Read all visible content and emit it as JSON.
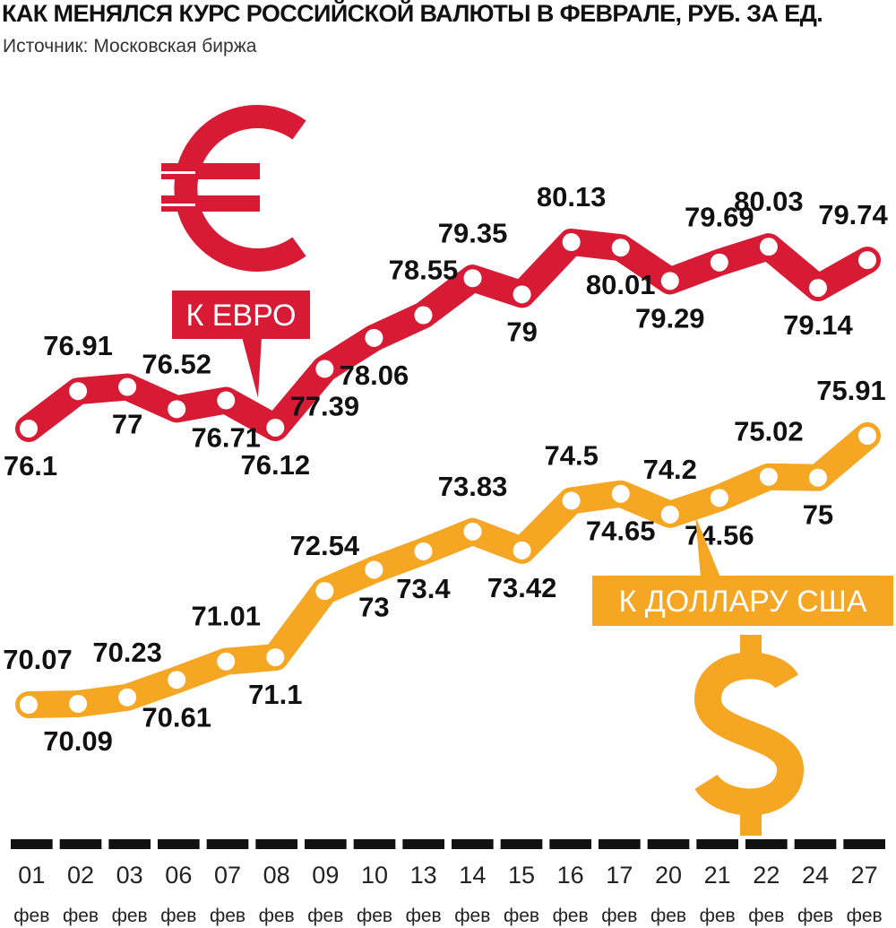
{
  "title": "КАК МЕНЯЛСЯ КУРС РОССИЙСКОЙ ВАЛЮТЫ В ФЕВРАЛЕ, РУБ. ЗА ЕД.",
  "subtitle": "Источник: Московская биржа",
  "colors": {
    "euro": "#d81b35",
    "usd": "#f5a623",
    "axis": "#111111",
    "marker": "#ffffff"
  },
  "icons": {
    "euro": "euro-sign-icon",
    "usd": "dollar-sign-icon"
  },
  "chart_data": {
    "type": "line",
    "categories": [
      "01",
      "02",
      "03",
      "06",
      "07",
      "08",
      "09",
      "10",
      "13",
      "14",
      "15",
      "16",
      "17",
      "20",
      "21",
      "22",
      "24",
      "27"
    ],
    "category_sublabel": "фев",
    "series": [
      {
        "name": "К ЕВРО",
        "key": "euro",
        "values": [
          76.1,
          76.91,
          77,
          76.52,
          76.71,
          76.12,
          77.39,
          78.06,
          78.55,
          79.35,
          79,
          80.13,
          80.01,
          79.29,
          79.69,
          80.03,
          79.14,
          79.74
        ],
        "labels": [
          "76.1",
          "76.91",
          "77",
          "76.52",
          "76.71",
          "76.12",
          "77.39",
          "78.06",
          "78.55",
          "79.35",
          "79",
          "80.13",
          "80.01",
          "79.29",
          "79.69",
          "80.03",
          "79.14",
          "79.74"
        ]
      },
      {
        "name": "К ДОЛЛАРУ США",
        "key": "usd",
        "values": [
          70.07,
          70.09,
          70.23,
          70.61,
          71.01,
          71.1,
          72.54,
          73,
          73.4,
          73.83,
          73.42,
          74.5,
          74.65,
          74.2,
          74.56,
          75.02,
          75,
          75.91
        ],
        "labels": [
          "70.07",
          "70.09",
          "70.23",
          "70.61",
          "71.01",
          "71.1",
          "72.54",
          "73",
          "73.4",
          "73.83",
          "73.42",
          "74.5",
          "74.65",
          "74.2",
          "74.56",
          "75.02",
          "75",
          "75.91"
        ]
      }
    ],
    "grid": false,
    "legend": "callouts"
  }
}
